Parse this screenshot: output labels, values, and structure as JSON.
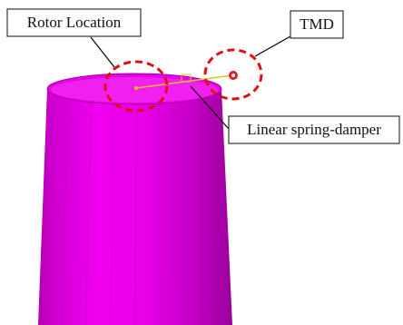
{
  "labels": {
    "rotor": "Rotor Location",
    "tmd": "TMD",
    "spring": "Linear spring-damper"
  }
}
